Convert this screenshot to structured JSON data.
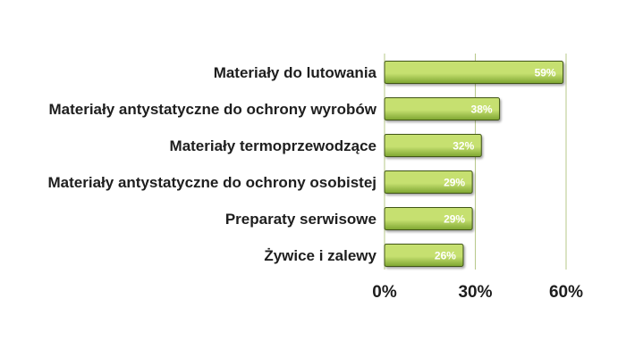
{
  "chart_data": {
    "type": "bar",
    "orientation": "horizontal",
    "categories": [
      "Materiały do lutowania",
      "Materiały antystatyczne do ochrony wyrobów",
      "Materiały termoprzewodzące",
      "Materiały antystatyczne do ochrony osobistej",
      "Preparaty serwisowe",
      "Żywice i zalewy"
    ],
    "values": [
      59,
      38,
      32,
      29,
      29,
      26
    ],
    "value_labels": [
      "59%",
      "38%",
      "32%",
      "29%",
      "29%",
      "26%"
    ],
    "xlim": [
      0,
      60
    ],
    "ticks": [
      0,
      30,
      60
    ],
    "tick_labels": [
      "0%",
      "30%",
      "60%"
    ],
    "grid": true,
    "legend": "none",
    "colors": {
      "bar_light": "#c6e070",
      "bar_dark": "#7da531",
      "bar_edge": "#3f5418",
      "grid": "#b7c88a",
      "text": "#1e1e1e"
    }
  }
}
